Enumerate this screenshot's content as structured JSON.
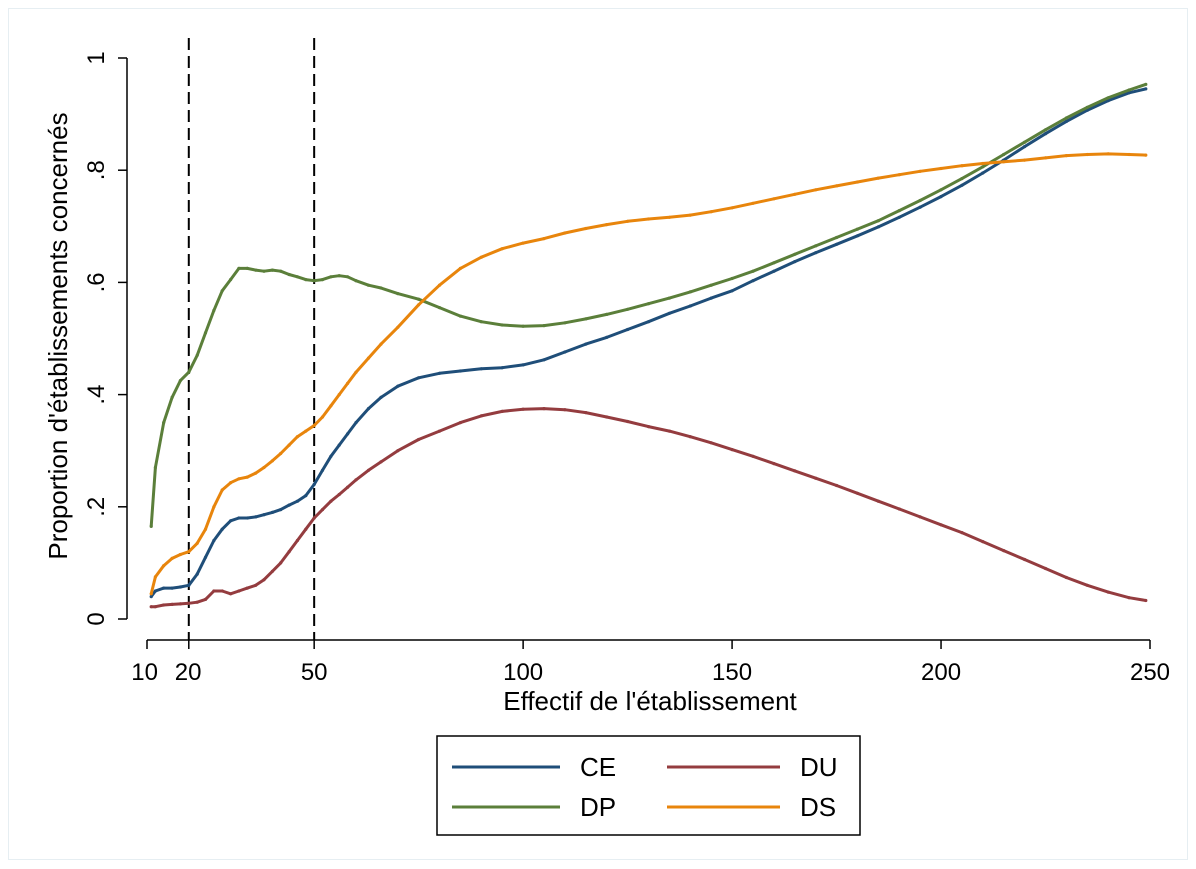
{
  "chart_data": {
    "type": "line",
    "title": "",
    "xlabel": "Effectif de l'établissement",
    "ylabel": "Proportion d'établissements concernés",
    "xlim": [
      10,
      250
    ],
    "ylim": [
      0,
      1
    ],
    "x_ticks": [
      10,
      20,
      50,
      100,
      150,
      200,
      250
    ],
    "x_tick_labels": [
      "10",
      "20",
      "50",
      "100",
      "150",
      "200",
      "250"
    ],
    "y_ticks": [
      0,
      0.2,
      0.4,
      0.6,
      0.8,
      1
    ],
    "y_tick_labels": [
      "0",
      ".2",
      ".4",
      ".6",
      ".8",
      "1"
    ],
    "reference_lines_x": [
      20,
      50
    ],
    "grid": false,
    "legend_position": "bottom",
    "series": [
      {
        "name": "CE",
        "color": "#1f4e79",
        "x": [
          11,
          12,
          14,
          16,
          18,
          20,
          22,
          24,
          26,
          28,
          30,
          32,
          34,
          36,
          38,
          40,
          42,
          44,
          46,
          48,
          50,
          52,
          54,
          56,
          58,
          60,
          63,
          66,
          70,
          75,
          80,
          85,
          90,
          95,
          100,
          105,
          110,
          115,
          120,
          125,
          130,
          135,
          140,
          145,
          150,
          155,
          160,
          165,
          170,
          175,
          180,
          185,
          190,
          195,
          200,
          205,
          210,
          215,
          220,
          225,
          230,
          235,
          240,
          245,
          249
        ],
        "y": [
          0.04,
          0.05,
          0.055,
          0.055,
          0.057,
          0.06,
          0.08,
          0.11,
          0.14,
          0.16,
          0.175,
          0.18,
          0.18,
          0.182,
          0.186,
          0.19,
          0.195,
          0.203,
          0.21,
          0.22,
          0.24,
          0.265,
          0.29,
          0.31,
          0.33,
          0.35,
          0.375,
          0.395,
          0.415,
          0.43,
          0.438,
          0.442,
          0.446,
          0.448,
          0.453,
          0.462,
          0.476,
          0.49,
          0.502,
          0.516,
          0.53,
          0.545,
          0.558,
          0.572,
          0.585,
          0.603,
          0.62,
          0.637,
          0.653,
          0.668,
          0.683,
          0.699,
          0.716,
          0.734,
          0.753,
          0.773,
          0.795,
          0.818,
          0.842,
          0.865,
          0.887,
          0.907,
          0.924,
          0.938,
          0.945
        ]
      },
      {
        "name": "DU",
        "color": "#943c3f",
        "x": [
          11,
          12,
          14,
          16,
          18,
          20,
          22,
          24,
          26,
          28,
          30,
          32,
          34,
          36,
          38,
          40,
          42,
          44,
          46,
          48,
          50,
          52,
          54,
          56,
          58,
          60,
          63,
          66,
          70,
          75,
          80,
          85,
          90,
          95,
          100,
          105,
          110,
          115,
          120,
          125,
          130,
          135,
          140,
          145,
          150,
          155,
          160,
          165,
          170,
          175,
          180,
          185,
          190,
          195,
          200,
          205,
          210,
          215,
          220,
          225,
          230,
          235,
          240,
          245,
          249
        ],
        "y": [
          0.022,
          0.022,
          0.025,
          0.026,
          0.027,
          0.028,
          0.03,
          0.035,
          0.05,
          0.05,
          0.045,
          0.05,
          0.055,
          0.06,
          0.07,
          0.085,
          0.1,
          0.12,
          0.14,
          0.16,
          0.18,
          0.195,
          0.21,
          0.222,
          0.235,
          0.248,
          0.265,
          0.28,
          0.3,
          0.32,
          0.335,
          0.35,
          0.362,
          0.37,
          0.374,
          0.375,
          0.373,
          0.368,
          0.36,
          0.352,
          0.343,
          0.335,
          0.325,
          0.314,
          0.302,
          0.29,
          0.277,
          0.264,
          0.251,
          0.238,
          0.224,
          0.21,
          0.196,
          0.182,
          0.168,
          0.154,
          0.138,
          0.122,
          0.106,
          0.09,
          0.074,
          0.06,
          0.048,
          0.038,
          0.033
        ]
      },
      {
        "name": "DP",
        "color": "#5b7f3a",
        "x": [
          11,
          12,
          14,
          16,
          18,
          20,
          22,
          24,
          26,
          28,
          30,
          32,
          34,
          36,
          38,
          40,
          42,
          44,
          46,
          48,
          50,
          52,
          54,
          56,
          58,
          60,
          63,
          66,
          70,
          75,
          80,
          85,
          90,
          95,
          100,
          105,
          110,
          115,
          120,
          125,
          130,
          135,
          140,
          145,
          150,
          155,
          160,
          165,
          170,
          175,
          180,
          185,
          190,
          195,
          200,
          205,
          210,
          215,
          220,
          225,
          230,
          235,
          240,
          245,
          249
        ],
        "y": [
          0.165,
          0.27,
          0.35,
          0.395,
          0.425,
          0.44,
          0.47,
          0.51,
          0.55,
          0.585,
          0.605,
          0.625,
          0.625,
          0.622,
          0.62,
          0.622,
          0.62,
          0.614,
          0.61,
          0.605,
          0.603,
          0.605,
          0.61,
          0.612,
          0.61,
          0.603,
          0.595,
          0.59,
          0.58,
          0.57,
          0.555,
          0.54,
          0.53,
          0.524,
          0.522,
          0.523,
          0.528,
          0.535,
          0.543,
          0.552,
          0.562,
          0.572,
          0.583,
          0.595,
          0.607,
          0.62,
          0.635,
          0.65,
          0.665,
          0.68,
          0.695,
          0.71,
          0.728,
          0.746,
          0.765,
          0.785,
          0.806,
          0.828,
          0.85,
          0.872,
          0.893,
          0.912,
          0.929,
          0.943,
          0.953
        ]
      },
      {
        "name": "DS",
        "color": "#e8850c",
        "x": [
          11,
          12,
          14,
          16,
          18,
          20,
          22,
          24,
          26,
          28,
          30,
          32,
          34,
          36,
          38,
          40,
          42,
          44,
          46,
          48,
          50,
          52,
          54,
          56,
          58,
          60,
          63,
          66,
          70,
          75,
          80,
          85,
          90,
          95,
          100,
          105,
          110,
          115,
          120,
          125,
          130,
          135,
          140,
          145,
          150,
          155,
          160,
          165,
          170,
          175,
          180,
          185,
          190,
          195,
          200,
          205,
          210,
          215,
          220,
          225,
          230,
          235,
          240,
          245,
          249
        ],
        "y": [
          0.045,
          0.075,
          0.095,
          0.108,
          0.115,
          0.12,
          0.135,
          0.16,
          0.2,
          0.23,
          0.243,
          0.25,
          0.253,
          0.26,
          0.27,
          0.282,
          0.295,
          0.31,
          0.325,
          0.335,
          0.345,
          0.36,
          0.38,
          0.4,
          0.42,
          0.44,
          0.465,
          0.49,
          0.52,
          0.56,
          0.595,
          0.625,
          0.645,
          0.66,
          0.67,
          0.678,
          0.688,
          0.696,
          0.703,
          0.709,
          0.713,
          0.716,
          0.72,
          0.726,
          0.733,
          0.741,
          0.749,
          0.757,
          0.765,
          0.772,
          0.779,
          0.786,
          0.792,
          0.798,
          0.803,
          0.808,
          0.812,
          0.815,
          0.818,
          0.822,
          0.826,
          0.828,
          0.829,
          0.828,
          0.827
        ]
      }
    ]
  }
}
